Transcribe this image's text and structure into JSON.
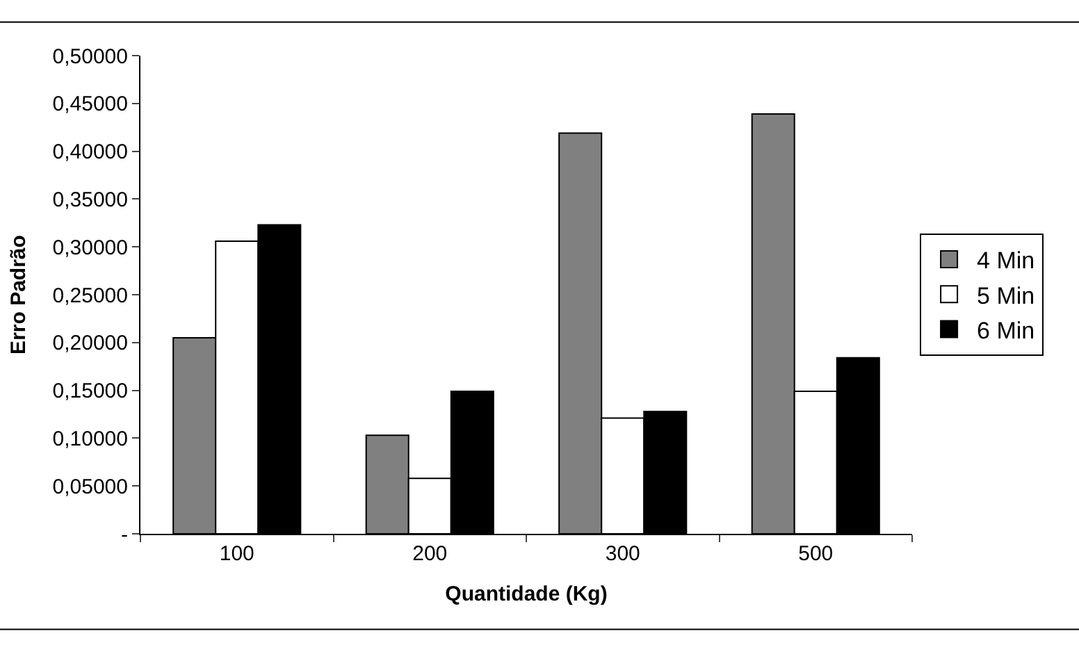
{
  "chart_data": {
    "type": "bar",
    "xlabel": "Quantidade (Kg)",
    "ylabel": "Erro Padrão",
    "categories": [
      "100",
      "200",
      "300",
      "500"
    ],
    "series": [
      {
        "name": "4 Min",
        "color": "#808080",
        "values": [
          0.205,
          0.103,
          0.419,
          0.439
        ]
      },
      {
        "name": "5 Min",
        "color": "#ffffff",
        "values": [
          0.306,
          0.058,
          0.121,
          0.149
        ]
      },
      {
        "name": "6 Min",
        "color": "#000000",
        "values": [
          0.323,
          0.149,
          0.128,
          0.184
        ]
      }
    ],
    "ylim": [
      0,
      0.5
    ],
    "yticks": [
      {
        "value": 0,
        "label": "-"
      },
      {
        "value": 0.05,
        "label": "0,05000"
      },
      {
        "value": 0.1,
        "label": "0,10000"
      },
      {
        "value": 0.15,
        "label": "0,15000"
      },
      {
        "value": 0.2,
        "label": "0,20000"
      },
      {
        "value": 0.25,
        "label": "0,25000"
      },
      {
        "value": 0.3,
        "label": "0,30000"
      },
      {
        "value": 0.35,
        "label": "0,35000"
      },
      {
        "value": 0.4,
        "label": "0,40000"
      },
      {
        "value": 0.45,
        "label": "0,45000"
      },
      {
        "value": 0.5,
        "label": "0,50000"
      }
    ],
    "grid": false,
    "legend": "right"
  }
}
